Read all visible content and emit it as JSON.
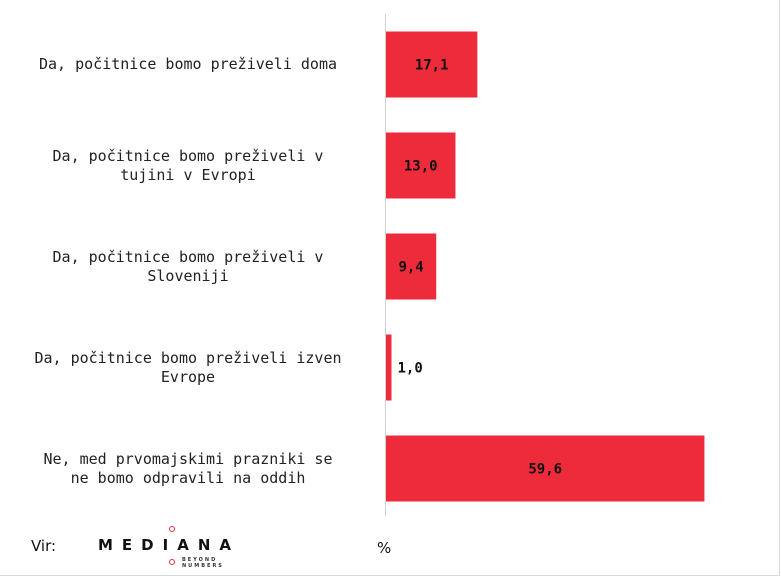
{
  "chart_data": {
    "type": "bar",
    "orientation": "horizontal",
    "categories": [
      "Da, počitnice bomo preživeli doma",
      "Da, počitnice bomo preživeli v\ntujini v Evropi",
      "Da, počitnice bomo preživeli v\nSloveniji",
      "Da, počitnice bomo preživeli izven\nEvrope",
      "Ne, med prvomajskimi prazniki se\nne bomo odpravili na oddih"
    ],
    "values": [
      17.1,
      13.0,
      9.4,
      1.0,
      59.6
    ],
    "value_labels": [
      "17,1",
      "13,0",
      "9,4",
      "1,0",
      "59,6"
    ],
    "xlim": [
      0,
      70
    ],
    "unit_label": "%",
    "bar_color": "#ee2b3b",
    "grid": false
  },
  "footer": {
    "source_label": "Vir:",
    "logo_text": "MEDIANA",
    "logo_tagline": "BEYOND NUMBERS"
  }
}
